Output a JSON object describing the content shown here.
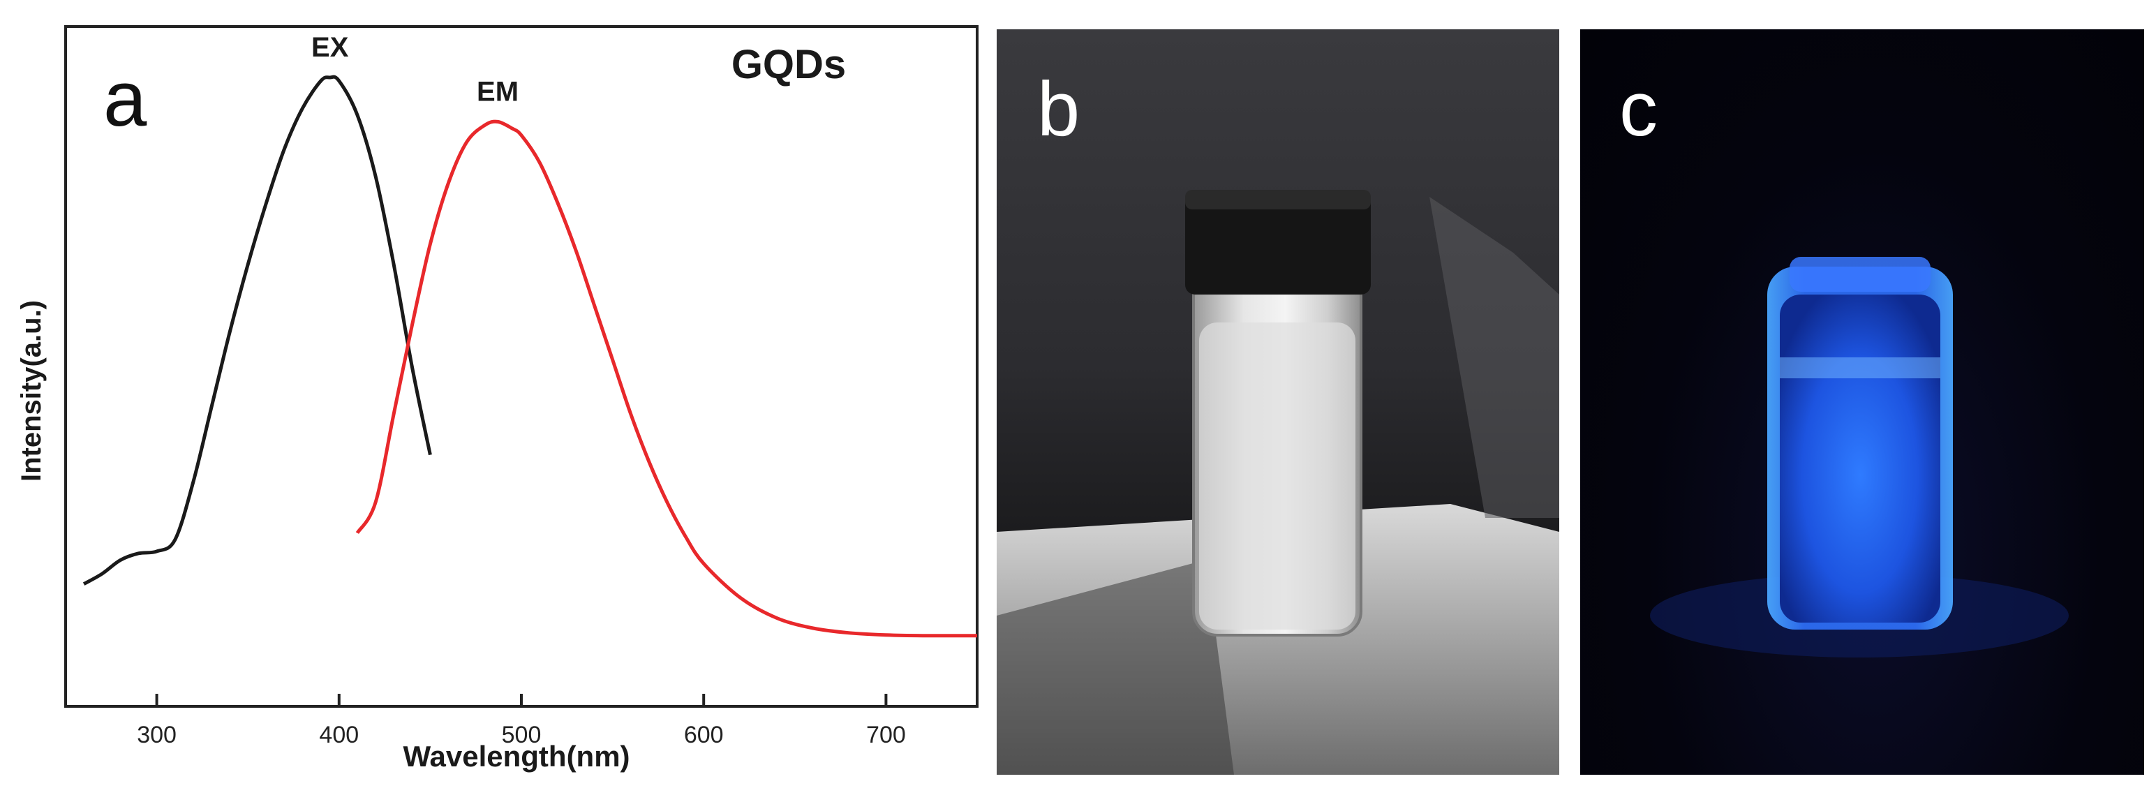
{
  "figure": {
    "panel_letters": [
      "a",
      "b",
      "c"
    ]
  },
  "chart_data": {
    "type": "line",
    "title": "GQDs",
    "xlabel": "Wavelength(nm)",
    "ylabel": "Intensity(a.u.)",
    "xlim": [
      250,
      750
    ],
    "ylim": [
      0,
      1
    ],
    "yticks_visible": false,
    "grid": false,
    "xticks": [
      300,
      400,
      500,
      600,
      700
    ],
    "series": [
      {
        "name": "EX",
        "color": "#1a1a1a",
        "x": [
          260,
          270,
          280,
          290,
          300,
          310,
          320,
          330,
          340,
          350,
          360,
          370,
          380,
          390,
          395,
          400,
          410,
          420,
          430,
          440,
          450
        ],
        "y": [
          0.18,
          0.195,
          0.215,
          0.225,
          0.228,
          0.245,
          0.33,
          0.44,
          0.55,
          0.65,
          0.74,
          0.82,
          0.88,
          0.92,
          0.925,
          0.92,
          0.87,
          0.78,
          0.65,
          0.5,
          0.37
        ]
      },
      {
        "name": "EM",
        "color": "#e8282b",
        "x": [
          410,
          420,
          430,
          440,
          450,
          460,
          470,
          480,
          487,
          495,
          500,
          510,
          520,
          530,
          540,
          550,
          560,
          570,
          580,
          590,
          600,
          620,
          640,
          660,
          680,
          700,
          720,
          750
        ],
        "y": [
          0.255,
          0.3,
          0.43,
          0.56,
          0.68,
          0.77,
          0.83,
          0.855,
          0.86,
          0.85,
          0.84,
          0.8,
          0.74,
          0.67,
          0.59,
          0.51,
          0.43,
          0.36,
          0.3,
          0.25,
          0.21,
          0.16,
          0.13,
          0.115,
          0.108,
          0.105,
          0.104,
          0.104
        ]
      }
    ]
  }
}
